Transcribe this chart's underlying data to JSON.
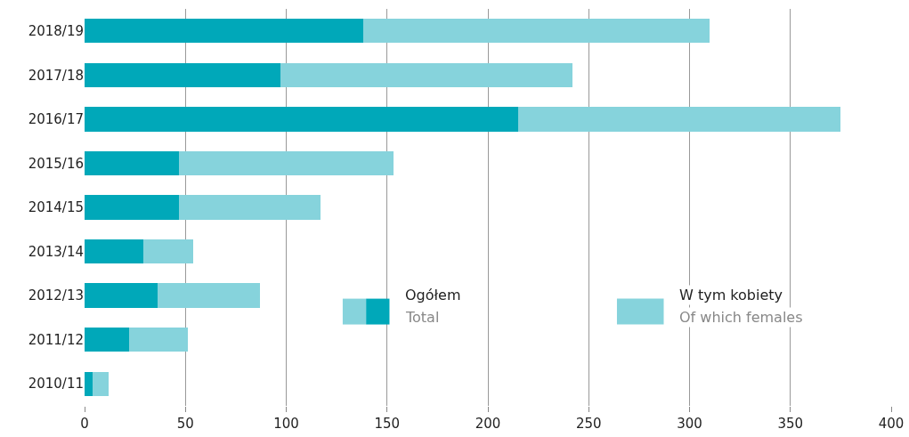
{
  "chart_data": {
    "type": "bar",
    "orientation": "horizontal",
    "stacked": true,
    "categories": [
      "2018/19",
      "2017/18",
      "2016/17",
      "2015/16",
      "2014/15",
      "2013/14",
      "2012/13",
      "2011/12",
      "2010/11"
    ],
    "series": [
      {
        "name": "Ogółem\nTotal",
        "color": "#00a8b9",
        "values": [
          138,
          97,
          215,
          47,
          47,
          29,
          36,
          22,
          4
        ]
      },
      {
        "name": "W tym kobiety\nOf which females",
        "color": "#86d3dc",
        "values": [
          172,
          145,
          160,
          106,
          70,
          25,
          51,
          29,
          8
        ]
      }
    ],
    "xlim": [
      0,
      400
    ],
    "xticks": [
      0,
      50,
      100,
      150,
      200,
      250,
      300,
      350,
      400
    ],
    "grid": "x",
    "legend": "bottom right"
  }
}
